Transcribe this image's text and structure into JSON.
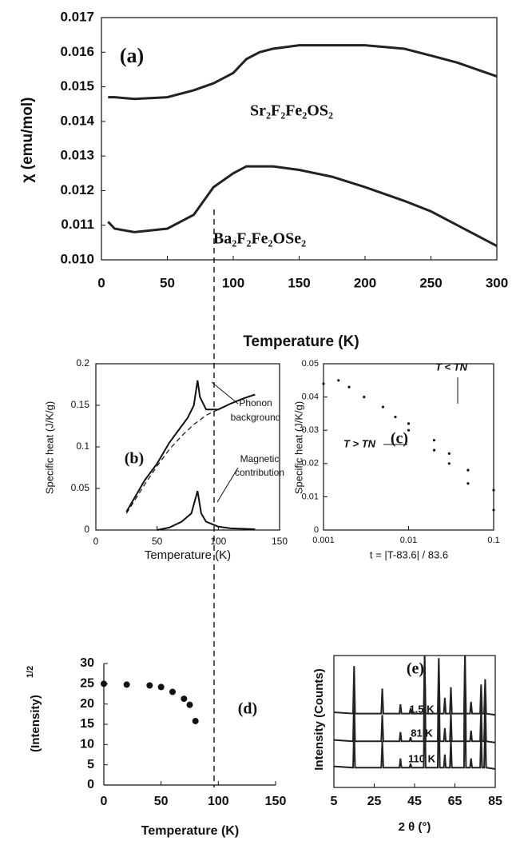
{
  "chart_data": [
    {
      "type": "line",
      "panel_label": "(a)",
      "x_label": "Temperature (K)",
      "y_label": "χ (emu/mol)",
      "xlim": [
        0,
        300
      ],
      "xticks": [
        0,
        50,
        100,
        150,
        200,
        250,
        300
      ],
      "ylim": [
        0.01,
        0.017
      ],
      "yticks": [
        {
          "value": 0.01,
          "label": "0.010"
        },
        {
          "value": 0.011,
          "label": "0.011"
        },
        {
          "value": 0.012,
          "label": "0.012"
        },
        {
          "value": 0.013,
          "label": "0.013"
        },
        {
          "value": 0.014,
          "label": "0.014"
        },
        {
          "value": 0.015,
          "label": "0.015"
        },
        {
          "value": 0.016,
          "label": "0.016"
        },
        {
          "value": 0.017,
          "label": "0.017"
        }
      ],
      "series": [
        {
          "name": "Sr₂F₂Fe₂OS₂",
          "color": "#222222",
          "x": [
            5,
            10,
            25,
            50,
            70,
            85,
            100,
            110,
            120,
            130,
            150,
            175,
            200,
            230,
            250,
            270,
            300
          ],
          "values": [
            0.0147,
            0.0147,
            0.01465,
            0.0147,
            0.0149,
            0.0151,
            0.0154,
            0.0158,
            0.016,
            0.0161,
            0.0162,
            0.0162,
            0.0162,
            0.0161,
            0.0159,
            0.0157,
            0.0153
          ]
        },
        {
          "name": "Ba₂F₂Fe₂OSe₂",
          "color": "#222222",
          "x": [
            5,
            10,
            25,
            50,
            70,
            85,
            100,
            110,
            120,
            130,
            150,
            175,
            200,
            230,
            250,
            270,
            300
          ],
          "values": [
            0.0111,
            0.0109,
            0.0108,
            0.0109,
            0.0113,
            0.0121,
            0.0125,
            0.0127,
            0.0127,
            0.0127,
            0.0126,
            0.0124,
            0.0121,
            0.0117,
            0.0114,
            0.011,
            0.0104
          ]
        }
      ]
    },
    {
      "type": "line",
      "panel_label": "(b)",
      "x_label": "Temperature (K)",
      "y_label": "Specific heat (J/K/g)",
      "xlim": [
        0,
        150
      ],
      "xticks": [
        0,
        50,
        100,
        150
      ],
      "ylim": [
        0,
        0.2
      ],
      "yticks": [
        0,
        0.05,
        0.1,
        0.15,
        0.2
      ],
      "annotations": [
        "Phonon",
        "background",
        "Magnetic",
        "contribution"
      ],
      "series": [
        {
          "color": "#111111",
          "x": [
            25,
            40,
            50,
            60,
            70,
            75,
            80,
            83,
            85,
            90,
            100,
            110,
            120,
            130
          ],
          "values": [
            0.022,
            0.06,
            0.08,
            0.105,
            0.125,
            0.135,
            0.15,
            0.18,
            0.16,
            0.145,
            0.145,
            0.152,
            0.158,
            0.163
          ]
        },
        {
          "color": "#111111",
          "dashed": true,
          "x": [
            25,
            40,
            50,
            60,
            70,
            80,
            90,
            100,
            110
          ],
          "values": [
            0.02,
            0.055,
            0.077,
            0.097,
            0.113,
            0.127,
            0.138,
            0.145,
            0.152
          ]
        },
        {
          "color": "#111111",
          "x": [
            50,
            60,
            70,
            78,
            83,
            86,
            90,
            100,
            110,
            130
          ],
          "values": [
            0,
            0.003,
            0.01,
            0.02,
            0.047,
            0.02,
            0.01,
            0.004,
            0.002,
            0.001
          ]
        }
      ]
    },
    {
      "type": "scatter",
      "panel_label": "(c)",
      "x_label": "t = |T-83.6| / 83.6",
      "y_label": "Specific heat (J/K/g)",
      "xscale": "log",
      "xlim": [
        0.001,
        0.1
      ],
      "xticks": [
        0.001,
        0.01,
        0.1
      ],
      "ylim": [
        0,
        0.05
      ],
      "yticks": [
        0,
        0.01,
        0.02,
        0.03,
        0.04,
        0.05
      ],
      "series": [
        {
          "name": "T < TN",
          "color": "#111111",
          "x": [
            0.001,
            0.0015,
            0.002,
            0.003,
            0.005,
            0.007,
            0.01,
            0.02,
            0.03,
            0.05,
            0.1
          ],
          "values": [
            0.044,
            0.045,
            0.043,
            0.04,
            0.037,
            0.034,
            0.032,
            0.027,
            0.023,
            0.018,
            0.012
          ]
        },
        {
          "name": "T > TN",
          "color": "#111111",
          "x": [
            0.01,
            0.02,
            0.03,
            0.05,
            0.1
          ],
          "values": [
            0.03,
            0.024,
            0.02,
            0.014,
            0.006
          ]
        }
      ]
    },
    {
      "type": "scatter",
      "panel_label": "(d)",
      "x_label": "Temperature (K)",
      "y_label": "(Intensity)",
      "y_label_sup": "1/2",
      "xlim": [
        0,
        150
      ],
      "xticks": [
        0,
        50,
        100,
        150
      ],
      "ylim": [
        0,
        30
      ],
      "yticks": [
        0,
        5,
        10,
        15,
        20,
        25,
        30
      ],
      "series": [
        {
          "color": "#111111",
          "x": [
            0,
            20,
            40,
            50,
            60,
            70,
            75,
            80
          ],
          "values": [
            25,
            24.8,
            24.6,
            24.2,
            23,
            21.3,
            19.8,
            15.8
          ]
        }
      ]
    },
    {
      "type": "line",
      "panel_label": "(e)",
      "x_label": "2 θ (°)",
      "y_label": "Intensity (Counts)",
      "xlim": [
        5,
        85
      ],
      "xticks": [
        5,
        25,
        45,
        65,
        85
      ],
      "ylim": [
        0,
        100
      ],
      "series": [
        {
          "name": "1.5 K",
          "color": "#222222",
          "x": [
            5,
            14.5,
            15,
            15.5,
            28.5,
            29,
            29.5,
            37.5,
            38,
            38.5,
            42.5,
            43,
            43.5,
            49.5,
            50,
            50.5,
            56.5,
            57,
            57.5,
            59.5,
            60,
            60.5,
            62.5,
            63,
            63.5,
            69.5,
            70,
            70.5,
            72.5,
            73,
            73.5,
            77.5,
            78,
            78.5,
            79.5,
            80,
            80.5,
            85
          ],
          "values": [
            57,
            56,
            92,
            56,
            56,
            75,
            56,
            56,
            63,
            56,
            56,
            60,
            56,
            56,
            100,
            56,
            56,
            98,
            56,
            56,
            68,
            56,
            56,
            76,
            56,
            56,
            100,
            56,
            56,
            65,
            56,
            56,
            78,
            56,
            56,
            82,
            56,
            55
          ]
        },
        {
          "name": "81 K",
          "color": "#222222",
          "x": [
            5,
            14.5,
            15,
            15.5,
            28.5,
            29,
            29.5,
            37.5,
            38,
            38.5,
            42.5,
            43,
            43.5,
            49.5,
            50,
            50.5,
            56.5,
            57,
            57.5,
            59.5,
            60,
            60.5,
            62.5,
            63,
            63.5,
            69.5,
            70,
            70.5,
            72.5,
            73,
            73.5,
            77.5,
            78,
            78.5,
            79.5,
            80,
            80.5,
            85
          ],
          "values": [
            36,
            35,
            70,
            35,
            35,
            55,
            35,
            35,
            42,
            35,
            35,
            38,
            35,
            35,
            100,
            35,
            35,
            90,
            35,
            35,
            45,
            35,
            35,
            56,
            35,
            35,
            100,
            35,
            35,
            43,
            35,
            35,
            60,
            35,
            35,
            70,
            35,
            34
          ]
        },
        {
          "name": "110 K",
          "color": "#222222",
          "x": [
            5,
            14.5,
            15,
            15.5,
            28.5,
            29,
            29.5,
            37.5,
            38,
            38.5,
            42.5,
            43,
            43.5,
            49.5,
            50,
            50.5,
            56.5,
            57,
            57.5,
            59.5,
            60,
            60.5,
            62.5,
            63,
            63.5,
            69.5,
            70,
            70.5,
            72.5,
            73,
            73.5,
            77.5,
            78,
            78.5,
            79.5,
            80,
            80.5,
            85
          ],
          "values": [
            16,
            15,
            45,
            15,
            15,
            35,
            15,
            15,
            22,
            15,
            15,
            18,
            15,
            15,
            80,
            15,
            15,
            70,
            15,
            15,
            25,
            15,
            15,
            36,
            15,
            15,
            80,
            15,
            15,
            22,
            15,
            15,
            42,
            15,
            15,
            52,
            15,
            14
          ]
        }
      ]
    }
  ]
}
